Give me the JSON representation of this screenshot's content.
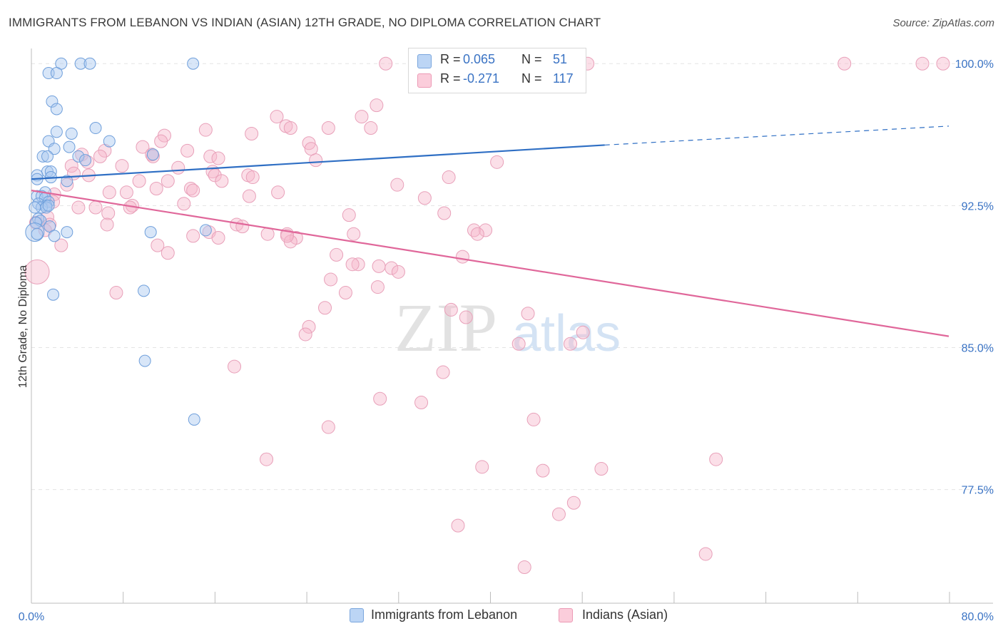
{
  "header": {
    "title": "IMMIGRANTS FROM LEBANON VS INDIAN (ASIAN) 12TH GRADE, NO DIPLOMA CORRELATION CHART",
    "source": "Source: ZipAtlas.com"
  },
  "watermark": {
    "zip": "ZIP",
    "atlas": "atlas"
  },
  "legend": {
    "r_label": "R =",
    "n_label": "N =",
    "series1": {
      "r": "0.065",
      "n": "51",
      "color": "#a8c8f0"
    },
    "series2": {
      "r": "-0.271",
      "n": "117",
      "color": "#f7b8cb"
    }
  },
  "bottom_legend": {
    "series1": "Immigrants from Lebanon",
    "series2": "Indians (Asian)"
  },
  "chart_data": {
    "type": "scatter",
    "title": "IMMIGRANTS FROM LEBANON VS INDIAN (ASIAN) 12TH GRADE, NO DIPLOMA CORRELATION CHART",
    "xlabel": "",
    "ylabel": "12th Grade, No Diploma",
    "xlim": [
      0,
      80
    ],
    "ylim": [
      71.5,
      100.8
    ],
    "x_tick_labels": [
      "0.0%",
      "80.0%"
    ],
    "y_ticks": [
      77.5,
      85.0,
      92.5,
      100.0
    ],
    "y_tick_labels": [
      "77.5%",
      "85.0%",
      "92.5%",
      "100.0%"
    ],
    "grid": true,
    "colors": {
      "series1": "#4a86d4",
      "series2": "#e8799f",
      "trend1": "#2f6fc4",
      "trend2": "#e0679a"
    },
    "series": [
      {
        "name": "Immigrants from Lebanon",
        "trend": {
          "x_start": 0.0,
          "y_start": 93.9,
          "x_end": 50.0,
          "y_end": 95.7,
          "dash_to_x": 80.0,
          "dash_to_y": 96.7
        },
        "points": [
          [
            2.6,
            100.0
          ],
          [
            4.3,
            100.0
          ],
          [
            5.1,
            100.0
          ],
          [
            14.1,
            100.0
          ],
          [
            1.5,
            99.5
          ],
          [
            2.2,
            99.5
          ],
          [
            1.8,
            98.0
          ],
          [
            2.2,
            97.6
          ],
          [
            2.2,
            96.4
          ],
          [
            3.5,
            96.3
          ],
          [
            5.6,
            96.6
          ],
          [
            1.5,
            95.9
          ],
          [
            6.8,
            95.9
          ],
          [
            3.3,
            95.6
          ],
          [
            2.0,
            95.5
          ],
          [
            1.0,
            95.1
          ],
          [
            1.4,
            95.1
          ],
          [
            4.1,
            95.1
          ],
          [
            10.6,
            95.2
          ],
          [
            4.7,
            94.9
          ],
          [
            1.4,
            94.3
          ],
          [
            1.7,
            94.3
          ],
          [
            0.5,
            94.1
          ],
          [
            0.5,
            93.9
          ],
          [
            1.7,
            94.0
          ],
          [
            3.1,
            93.8
          ],
          [
            1.2,
            93.2
          ],
          [
            0.5,
            93.0
          ],
          [
            0.9,
            93.0
          ],
          [
            1.2,
            92.9
          ],
          [
            1.5,
            92.7
          ],
          [
            0.6,
            92.6
          ],
          [
            1.3,
            92.5
          ],
          [
            0.9,
            92.4
          ],
          [
            1.3,
            92.4
          ],
          [
            1.5,
            92.5
          ],
          [
            0.3,
            92.4
          ],
          [
            0.6,
            91.8
          ],
          [
            0.8,
            91.7
          ],
          [
            0.4,
            91.6
          ],
          [
            0.3,
            91.1
          ],
          [
            0.5,
            91.0
          ],
          [
            1.6,
            91.4
          ],
          [
            2.0,
            90.9
          ],
          [
            3.1,
            91.1
          ],
          [
            10.4,
            91.1
          ],
          [
            15.2,
            91.2
          ],
          [
            9.8,
            88.0
          ],
          [
            1.9,
            87.8
          ],
          [
            9.9,
            84.3
          ],
          [
            14.2,
            81.2
          ]
        ]
      },
      {
        "name": "Indians (Asian)",
        "trend": {
          "x_start": 0.0,
          "y_start": 93.3,
          "x_end": 80.0,
          "y_end": 85.6
        },
        "points": [
          [
            30.9,
            100.0
          ],
          [
            46.6,
            100.0
          ],
          [
            46.7,
            100.0
          ],
          [
            48.5,
            100.0
          ],
          [
            70.9,
            100.0
          ],
          [
            77.7,
            100.0
          ],
          [
            79.5,
            100.0
          ],
          [
            30.1,
            97.8
          ],
          [
            28.8,
            97.2
          ],
          [
            21.4,
            97.2
          ],
          [
            22.2,
            96.7
          ],
          [
            25.9,
            96.6
          ],
          [
            22.6,
            96.6
          ],
          [
            29.6,
            96.6
          ],
          [
            15.2,
            96.5
          ],
          [
            19.2,
            96.3
          ],
          [
            11.6,
            96.2
          ],
          [
            11.3,
            95.9
          ],
          [
            24.2,
            95.8
          ],
          [
            9.7,
            95.6
          ],
          [
            24.4,
            95.5
          ],
          [
            6.4,
            95.4
          ],
          [
            13.6,
            95.4
          ],
          [
            4.4,
            95.2
          ],
          [
            15.6,
            95.1
          ],
          [
            16.3,
            95.0
          ],
          [
            10.6,
            95.1
          ],
          [
            10.5,
            95.2
          ],
          [
            6.0,
            95.1
          ],
          [
            24.8,
            94.9
          ],
          [
            40.6,
            94.8
          ],
          [
            4.9,
            94.8
          ],
          [
            3.5,
            94.6
          ],
          [
            7.9,
            94.6
          ],
          [
            12.8,
            94.5
          ],
          [
            15.8,
            94.3
          ],
          [
            16.0,
            94.1
          ],
          [
            18.9,
            94.1
          ],
          [
            19.3,
            94.0
          ],
          [
            3.7,
            94.2
          ],
          [
            5.0,
            94.1
          ],
          [
            36.4,
            94.0
          ],
          [
            11.9,
            93.8
          ],
          [
            9.4,
            93.8
          ],
          [
            16.6,
            93.8
          ],
          [
            3.1,
            93.6
          ],
          [
            31.9,
            93.6
          ],
          [
            10.9,
            93.4
          ],
          [
            13.9,
            93.4
          ],
          [
            6.8,
            93.2
          ],
          [
            2.0,
            93.1
          ],
          [
            8.3,
            93.2
          ],
          [
            21.5,
            93.2
          ],
          [
            14.1,
            93.3
          ],
          [
            34.3,
            92.9
          ],
          [
            19.0,
            93.0
          ],
          [
            1.9,
            92.7
          ],
          [
            5.6,
            92.4
          ],
          [
            13.3,
            92.6
          ],
          [
            8.8,
            92.5
          ],
          [
            4.1,
            92.4
          ],
          [
            8.6,
            92.4
          ],
          [
            6.7,
            92.1
          ],
          [
            36.0,
            92.1
          ],
          [
            27.7,
            92.0
          ],
          [
            1.4,
            91.9
          ],
          [
            0.4,
            91.6
          ],
          [
            1.6,
            91.5
          ],
          [
            6.6,
            91.5
          ],
          [
            17.9,
            91.5
          ],
          [
            18.4,
            91.4
          ],
          [
            1.2,
            91.2
          ],
          [
            38.6,
            91.2
          ],
          [
            39.6,
            91.2
          ],
          [
            38.9,
            91.0
          ],
          [
            15.5,
            91.1
          ],
          [
            20.6,
            91.0
          ],
          [
            22.3,
            91.0
          ],
          [
            23.1,
            90.8
          ],
          [
            28.1,
            91.0
          ],
          [
            14.1,
            90.9
          ],
          [
            16.3,
            90.8
          ],
          [
            22.6,
            90.6
          ],
          [
            22.3,
            90.9
          ],
          [
            11.0,
            90.4
          ],
          [
            11.9,
            90.0
          ],
          [
            2.6,
            90.4
          ],
          [
            26.6,
            89.9
          ],
          [
            37.6,
            89.8
          ],
          [
            28.5,
            89.4
          ],
          [
            30.3,
            89.3
          ],
          [
            31.4,
            89.2
          ],
          [
            28.0,
            89.4
          ],
          [
            32.0,
            89.0
          ],
          [
            0.5,
            89.0
          ],
          [
            26.1,
            88.6
          ],
          [
            30.2,
            88.2
          ],
          [
            27.4,
            87.9
          ],
          [
            7.4,
            87.9
          ],
          [
            25.6,
            87.1
          ],
          [
            36.6,
            87.0
          ],
          [
            43.3,
            86.8
          ],
          [
            37.9,
            86.6
          ],
          [
            24.2,
            86.1
          ],
          [
            23.9,
            85.7
          ],
          [
            48.1,
            85.8
          ],
          [
            42.5,
            85.2
          ],
          [
            47.0,
            85.2
          ],
          [
            17.7,
            84.0
          ],
          [
            35.9,
            83.7
          ],
          [
            30.4,
            82.3
          ],
          [
            34.0,
            82.1
          ],
          [
            25.9,
            80.8
          ],
          [
            43.8,
            81.2
          ],
          [
            20.5,
            79.1
          ],
          [
            59.7,
            79.1
          ],
          [
            39.3,
            78.7
          ],
          [
            44.6,
            78.5
          ],
          [
            49.7,
            78.6
          ],
          [
            46.0,
            76.2
          ],
          [
            47.3,
            76.8
          ],
          [
            37.2,
            75.6
          ],
          [
            58.8,
            74.1
          ],
          [
            43.0,
            73.4
          ]
        ]
      }
    ]
  }
}
